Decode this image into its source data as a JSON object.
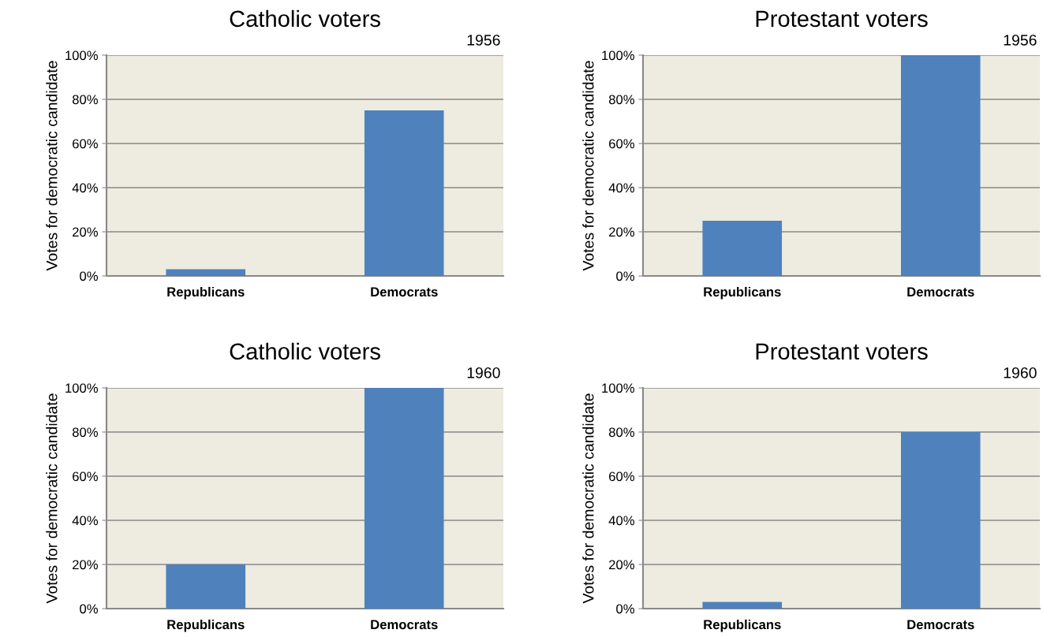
{
  "chart_data": [
    {
      "type": "bar",
      "title": "Catholic voters",
      "annotations": [
        "1956"
      ],
      "ylabel": "Votes for democratic candidate",
      "categories": [
        "Republicans",
        "Democrats"
      ],
      "values": [
        3,
        75
      ],
      "color": "#4f81bd",
      "ylim": [
        0,
        100
      ],
      "yticks": [
        {
          "value": 0,
          "label": "0%"
        },
        {
          "value": 20,
          "label": "20%"
        },
        {
          "value": 40,
          "label": "40%"
        },
        {
          "value": 60,
          "label": "60%"
        },
        {
          "value": 80,
          "label": "80%"
        },
        {
          "value": 100,
          "label": "100%"
        }
      ],
      "grid": "y"
    },
    {
      "type": "bar",
      "title": "Protestant voters",
      "annotations": [
        "1956"
      ],
      "ylabel": "Votes for democratic candidate",
      "categories": [
        "Republicans",
        "Democrats"
      ],
      "values": [
        25,
        100
      ],
      "color": "#4f81bd",
      "ylim": [
        0,
        100
      ],
      "yticks": [
        {
          "value": 0,
          "label": "0%"
        },
        {
          "value": 20,
          "label": "20%"
        },
        {
          "value": 40,
          "label": "40%"
        },
        {
          "value": 60,
          "label": "60%"
        },
        {
          "value": 80,
          "label": "80%"
        },
        {
          "value": 100,
          "label": "100%"
        }
      ],
      "grid": "y"
    },
    {
      "type": "bar",
      "title": "Catholic voters",
      "annotations": [
        "1960"
      ],
      "ylabel": "Votes for democratic candidate",
      "categories": [
        "Republicans",
        "Democrats"
      ],
      "values": [
        20,
        100
      ],
      "color": "#4f81bd",
      "ylim": [
        0,
        100
      ],
      "yticks": [
        {
          "value": 0,
          "label": "0%"
        },
        {
          "value": 20,
          "label": "20%"
        },
        {
          "value": 40,
          "label": "40%"
        },
        {
          "value": 60,
          "label": "60%"
        },
        {
          "value": 80,
          "label": "80%"
        },
        {
          "value": 100,
          "label": "100%"
        }
      ],
      "grid": "y"
    },
    {
      "type": "bar",
      "title": "Protestant voters",
      "annotations": [
        "1960"
      ],
      "ylabel": "Votes for democratic candidate",
      "categories": [
        "Republicans",
        "Democrats"
      ],
      "values": [
        3,
        80
      ],
      "color": "#4f81bd",
      "ylim": [
        0,
        100
      ],
      "yticks": [
        {
          "value": 0,
          "label": "0%"
        },
        {
          "value": 20,
          "label": "20%"
        },
        {
          "value": 40,
          "label": "40%"
        },
        {
          "value": 60,
          "label": "60%"
        },
        {
          "value": 80,
          "label": "80%"
        },
        {
          "value": 100,
          "label": "100%"
        }
      ],
      "grid": "y"
    }
  ]
}
